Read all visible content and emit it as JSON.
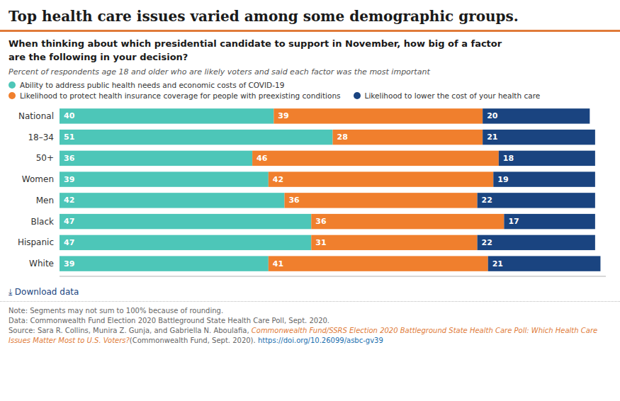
{
  "chart_data": {
    "type": "bar",
    "orientation": "horizontal",
    "stacked": true,
    "data_labels": true,
    "tick_labels": "y",
    "legend": "top",
    "title": "Top health care issues varied among some demographic groups.",
    "subtitle": "Percent of respondents age 18 and older who are likely voters and said each factor was the most important",
    "annotations": [
      "When thinking about which presidential candidate to support in November, how big of a factor\nare the following in your decision?",
      "⤓  Download data",
      "Note: Segments may not sum to 100% because of rounding.",
      "Data: Commonwealth Fund Election 2020 Battleground State Health Care Poll, Sept. 2020.",
      "Source: Sara R. Collins, Munira Z. Gunja, and Gabriella N. Aboulafia, ",
      "Commonwealth Fund/SSRS Election 2020 Battleground State Health Care Poll: Which Health Care Issues Matter Most to U.S. Voters?",
      "(Commonwealth Fund, Sept. 2020). ",
      "https://doi.org/10.26099/asbc-gv39"
    ],
    "categories": [
      "National",
      "18–34",
      "50+",
      "Women",
      "Men",
      "Black",
      "Hispanic",
      "White"
    ],
    "series": [
      {
        "name": "Ability to address public health needs and economic costs of COVID-19",
        "color": "#4DC6B8",
        "values": [
          40,
          51,
          36,
          39,
          42,
          47,
          47,
          39
        ]
      },
      {
        "name": "Likelihood to protect health insurance coverage for people with preexisting conditions",
        "color": "#F07F2D",
        "values": [
          39,
          28,
          46,
          42,
          36,
          36,
          31,
          41
        ]
      },
      {
        "name": "Likelihood to lower the cost of your health care",
        "color": "#1A4480",
        "values": [
          20,
          21,
          18,
          19,
          22,
          17,
          22,
          21
        ]
      }
    ],
    "xlim": [
      0,
      102
    ]
  }
}
